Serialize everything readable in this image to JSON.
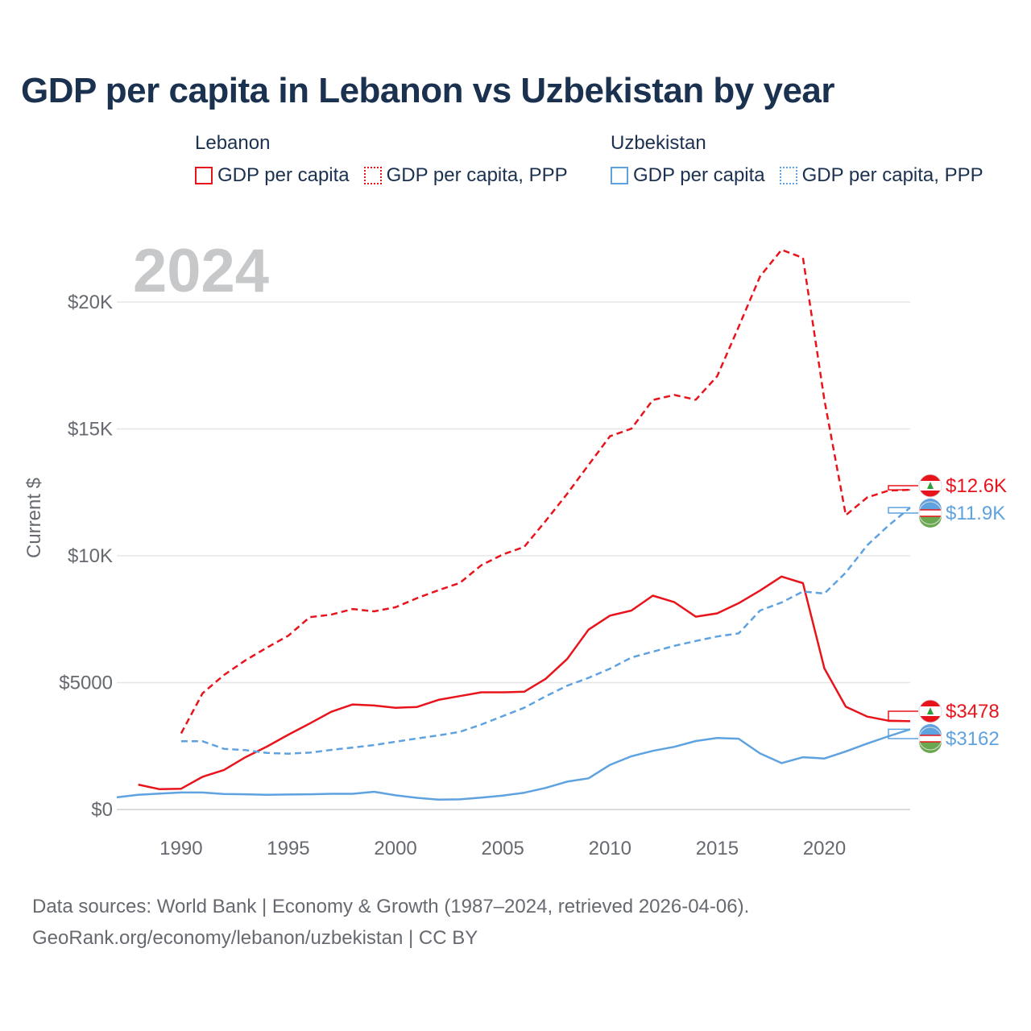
{
  "title": "GDP per capita in Lebanon vs Uzbekistan by year",
  "legend": {
    "lebanon": {
      "group": "Lebanon",
      "solid": "GDP per capita",
      "ppp": "GDP per capita, PPP"
    },
    "uzbekistan": {
      "group": "Uzbekistan",
      "solid": "GDP per capita",
      "ppp": "GDP per capita, PPP"
    }
  },
  "year_display": "2024",
  "footer": {
    "line1": "Data sources: World Bank | Economy & Growth (1987–2024, retrieved 2026-04-06).",
    "line2": "GeoRank.org/economy/lebanon/uzbekistan | CC BY"
  },
  "colors": {
    "lebanon": "#e8141c",
    "uzbekistan": "#5ea2e0",
    "grid": "#e6e6e6",
    "title": "#1b3150"
  },
  "chart_data": {
    "type": "line",
    "title": "GDP per capita in Lebanon vs Uzbekistan by year",
    "xlabel": "",
    "ylabel": "Current $",
    "xlim": [
      1987,
      2024
    ],
    "ylim": [
      0,
      22000
    ],
    "x_ticks": [
      1990,
      1995,
      2000,
      2005,
      2010,
      2015,
      2020
    ],
    "x_tick_labels": [
      "1990",
      "1995",
      "2000",
      "2005",
      "2010",
      "2015",
      "2020"
    ],
    "y_ticks": [
      0,
      5000,
      10000,
      15000,
      20000
    ],
    "y_tick_labels": [
      "$0",
      "$5000",
      "$10K",
      "$15K",
      "$20K"
    ],
    "series": [
      {
        "name": "Lebanon GDP per capita",
        "country": "lebanon",
        "style": "solid",
        "end_label": "$3478",
        "x": [
          1988,
          1989,
          1990,
          1991,
          1992,
          1993,
          1994,
          1995,
          1996,
          1997,
          1998,
          1999,
          2000,
          2001,
          2002,
          2003,
          2004,
          2005,
          2006,
          2007,
          2008,
          2009,
          2010,
          2011,
          2012,
          2013,
          2014,
          2015,
          2016,
          2017,
          2018,
          2019,
          2020,
          2021,
          2022,
          2023,
          2024
        ],
        "values": [
          980,
          800,
          820,
          1290,
          1560,
          2060,
          2480,
          2950,
          3390,
          3850,
          4140,
          4100,
          4010,
          4040,
          4320,
          4470,
          4620,
          4620,
          4640,
          5150,
          5930,
          7090,
          7640,
          7840,
          8430,
          8170,
          7600,
          7730,
          8130,
          8630,
          9180,
          8920,
          5560,
          4050,
          3660,
          3500,
          3478
        ]
      },
      {
        "name": "Lebanon GDP per capita, PPP",
        "country": "lebanon",
        "style": "dashed",
        "end_label": "$12.6K",
        "x": [
          1990,
          1991,
          1992,
          1993,
          1994,
          1995,
          1996,
          1997,
          1998,
          1999,
          2000,
          2001,
          2002,
          2003,
          2004,
          2005,
          2006,
          2007,
          2008,
          2009,
          2010,
          2011,
          2012,
          2013,
          2014,
          2015,
          2016,
          2017,
          2018,
          2019,
          2020,
          2021,
          2022,
          2023,
          2024
        ],
        "values": [
          3000,
          4580,
          5300,
          5880,
          6380,
          6850,
          7580,
          7680,
          7900,
          7810,
          7970,
          8330,
          8640,
          8930,
          9630,
          10050,
          10350,
          11370,
          12440,
          13580,
          14710,
          15010,
          16140,
          16340,
          16150,
          17080,
          19020,
          21010,
          22060,
          21740,
          16140,
          11600,
          12300,
          12570,
          12600
        ]
      },
      {
        "name": "Uzbekistan GDP per capita",
        "country": "uzbekistan",
        "style": "solid",
        "end_label": "$3162",
        "x": [
          1987,
          1988,
          1989,
          1990,
          1991,
          1992,
          1993,
          1994,
          1995,
          1996,
          1997,
          1998,
          1999,
          2000,
          2001,
          2002,
          2003,
          2004,
          2005,
          2006,
          2007,
          2008,
          2009,
          2010,
          2011,
          2012,
          2013,
          2014,
          2015,
          2016,
          2017,
          2018,
          2019,
          2020,
          2021,
          2022,
          2023,
          2024
        ],
        "values": [
          480,
          580,
          630,
          670,
          670,
          610,
          600,
          580,
          590,
          600,
          620,
          620,
          700,
          560,
          460,
          390,
          400,
          470,
          550,
          660,
          850,
          1100,
          1230,
          1760,
          2100,
          2310,
          2470,
          2700,
          2820,
          2790,
          2210,
          1830,
          2060,
          2010,
          2290,
          2600,
          2890,
          3162
        ]
      },
      {
        "name": "Uzbekistan GDP per capita, PPP",
        "country": "uzbekistan",
        "style": "dashed",
        "end_label": "$11.9K",
        "x": [
          1990,
          1991,
          1992,
          1993,
          1994,
          1995,
          1996,
          1997,
          1998,
          1999,
          2000,
          2001,
          2002,
          2003,
          2004,
          2005,
          2006,
          2007,
          2008,
          2009,
          2010,
          2011,
          2012,
          2013,
          2014,
          2015,
          2016,
          2017,
          2018,
          2019,
          2020,
          2021,
          2022,
          2023,
          2024
        ],
        "values": [
          2690,
          2690,
          2390,
          2340,
          2230,
          2200,
          2240,
          2350,
          2440,
          2540,
          2670,
          2800,
          2920,
          3060,
          3350,
          3680,
          4010,
          4460,
          4880,
          5190,
          5550,
          5990,
          6220,
          6450,
          6640,
          6820,
          6940,
          7840,
          8160,
          8590,
          8510,
          9340,
          10420,
          11200,
          11900
        ]
      }
    ]
  }
}
